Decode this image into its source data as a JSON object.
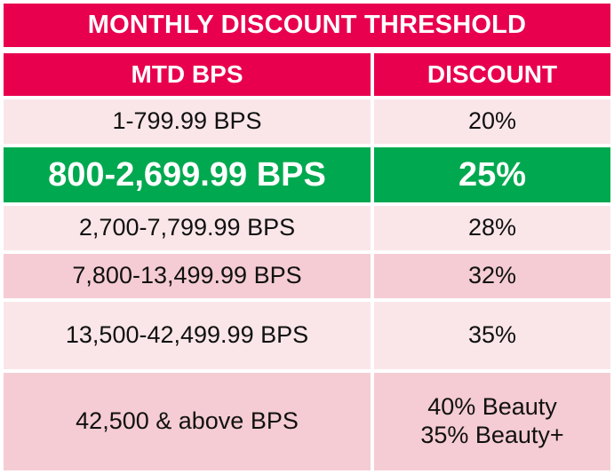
{
  "title": "MONTHLY DISCOUNT THRESHOLD",
  "headers": [
    "MTD BPS",
    "DISCOUNT"
  ],
  "rows": [
    {
      "bps": "1-799.99 BPS",
      "discount": "20%",
      "highlighted": false
    },
    {
      "bps": "800-2,699.99 BPS",
      "discount": "25%",
      "highlighted": true
    },
    {
      "bps": "2,700-7,799.99 BPS",
      "discount": "28%",
      "highlighted": false
    },
    {
      "bps": "7,800-13,499.99 BPS",
      "discount": "32%",
      "highlighted": false
    },
    {
      "bps": "13,500-42,499.99 BPS",
      "discount": "35%",
      "highlighted": false
    },
    {
      "bps": "42,500 & above BPS",
      "discount_lines": [
        "40% Beauty",
        "35% Beauty+"
      ],
      "highlighted": false
    }
  ],
  "colors": {
    "header": "#E8004F",
    "highlight": "#00A94F",
    "row_light": "#FAE6E9",
    "row_mid": "#F5CCD3"
  }
}
